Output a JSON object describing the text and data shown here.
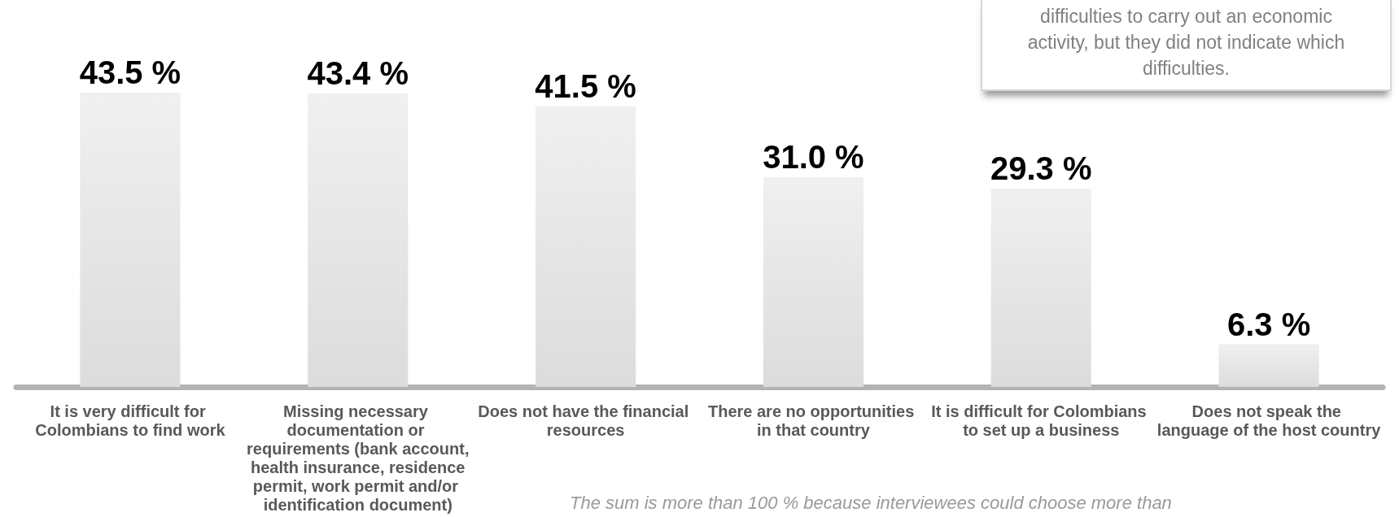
{
  "chart_data": {
    "type": "bar",
    "categories": [
      "It is very difficult for Colombians to find work",
      "Missing necessary documentation or requirements (bank account, health insurance, residence permit, work permit and/or identification document)",
      "Does not have the financial resources",
      "There are no opportunities in that country",
      "It is difficult for Colombians to set up a business",
      "Does not speak the language of the host country"
    ],
    "values": [
      43.5,
      43.4,
      41.5,
      31.0,
      29.3,
      6.3
    ],
    "value_labels": [
      "43.5 %",
      "43.4 %",
      "41.5 %",
      "31.0 %",
      "29.3 %",
      "6.3 %"
    ],
    "color": "#dcdcdc",
    "annotations": [
      "difficulties to carry out an economic activity, but they did not indicate which difficulties.",
      "The sum is more than 100 % because interviewees could choose more than"
    ]
  }
}
